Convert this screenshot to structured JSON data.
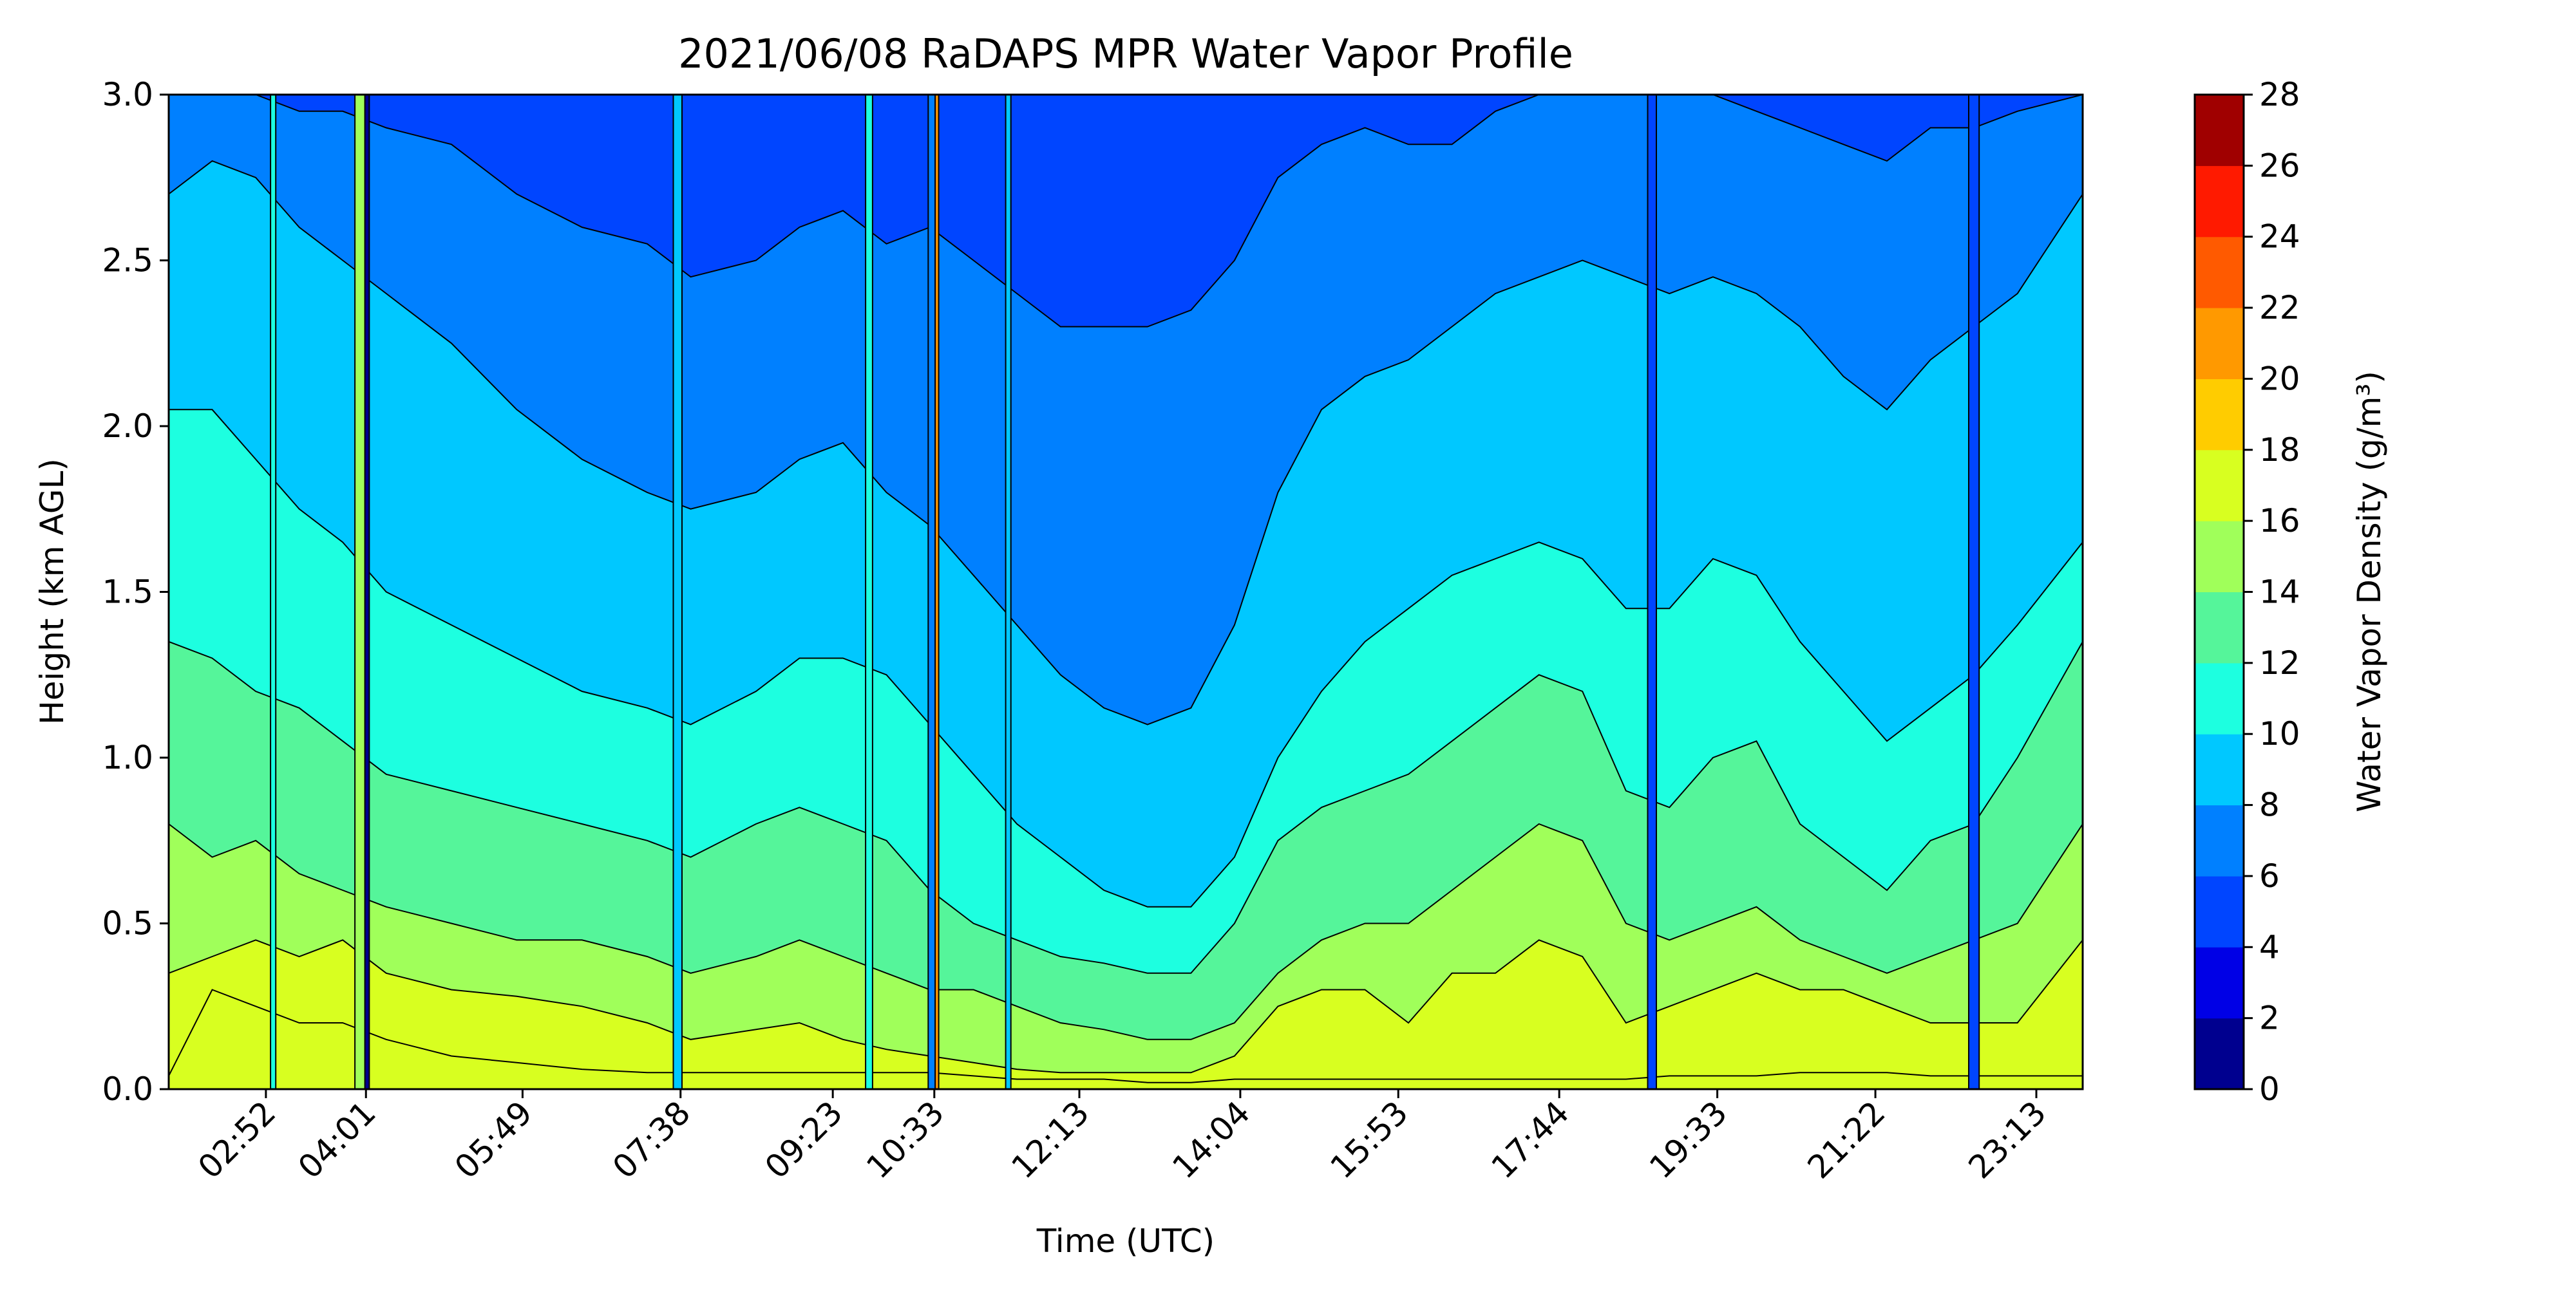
{
  "chart_data": {
    "type": "heatmap",
    "subtype": "filled-contour",
    "title": "2021/06/08 RaDAPS MPR Water Vapor Profile",
    "xlabel": "Time (UTC)",
    "ylabel": "Height (km AGL)",
    "ylim": [
      0.0,
      3.0
    ],
    "xlim_hours": [
      1.75,
      23.75
    ],
    "x_ticks": [
      {
        "label": "02:52",
        "hour": 2.867
      },
      {
        "label": "04:01",
        "hour": 4.017
      },
      {
        "label": "05:49",
        "hour": 5.817
      },
      {
        "label": "07:38",
        "hour": 7.633
      },
      {
        "label": "09:23",
        "hour": 9.383
      },
      {
        "label": "10:33",
        "hour": 10.55
      },
      {
        "label": "12:13",
        "hour": 12.217
      },
      {
        "label": "14:04",
        "hour": 14.067
      },
      {
        "label": "15:53",
        "hour": 15.883
      },
      {
        "label": "17:44",
        "hour": 17.733
      },
      {
        "label": "19:33",
        "hour": 19.55
      },
      {
        "label": "21:22",
        "hour": 21.367
      },
      {
        "label": "23:13",
        "hour": 23.217
      }
    ],
    "y_ticks": [
      "0.0",
      "0.5",
      "1.0",
      "1.5",
      "2.0",
      "2.5",
      "3.0"
    ],
    "y_tick_values": [
      0.0,
      0.5,
      1.0,
      1.5,
      2.0,
      2.5,
      3.0
    ],
    "colorbar": {
      "label": "Water Vapor Density (g/m³)",
      "levels": [
        0,
        2,
        4,
        6,
        8,
        10,
        12,
        14,
        16,
        18,
        20,
        22,
        24,
        26,
        28
      ],
      "tick_labels": [
        "0",
        "2",
        "4",
        "6",
        "8",
        "10",
        "12",
        "14",
        "16",
        "18",
        "20",
        "22",
        "24",
        "26",
        "28"
      ],
      "colors": [
        "#00008f",
        "#0000e6",
        "#0045ff",
        "#0080ff",
        "#00c8ff",
        "#1dffe0",
        "#55f59a",
        "#a0ff5a",
        "#d8ff20",
        "#ffcc00",
        "#ff9900",
        "#ff5a00",
        "#ff1a00",
        "#a00000"
      ]
    },
    "contour_levels_km": {
      "hours": [
        1.75,
        2.25,
        2.75,
        3.25,
        3.75,
        4.25,
        5.0,
        5.75,
        6.5,
        7.25,
        7.75,
        8.5,
        9.0,
        9.5,
        10.0,
        10.5,
        11.0,
        11.5,
        12.0,
        12.5,
        13.0,
        13.5,
        14.0,
        14.5,
        15.0,
        15.5,
        16.0,
        16.5,
        17.0,
        17.5,
        18.0,
        18.5,
        19.0,
        19.5,
        20.0,
        20.5,
        21.0,
        21.5,
        22.0,
        22.5,
        23.0,
        23.75
      ],
      "levels": [
        {
          "value": 18,
          "heights": [
            0.04,
            0.3,
            0.25,
            0.2,
            0.2,
            0.15,
            0.1,
            0.08,
            0.06,
            0.05,
            0.05,
            0.05,
            0.05,
            0.05,
            0.05,
            0.05,
            0.04,
            0.03,
            0.03,
            0.03,
            0.02,
            0.02,
            0.03,
            0.03,
            0.03,
            0.03,
            0.03,
            0.03,
            0.03,
            0.03,
            0.03,
            0.03,
            0.04,
            0.04,
            0.04,
            0.05,
            0.05,
            0.05,
            0.04,
            0.04,
            0.04,
            0.04
          ]
        },
        {
          "value": 16,
          "heights": [
            0.35,
            0.4,
            0.45,
            0.4,
            0.45,
            0.35,
            0.3,
            0.28,
            0.25,
            0.2,
            0.15,
            0.18,
            0.2,
            0.15,
            0.12,
            0.1,
            0.08,
            0.06,
            0.05,
            0.05,
            0.05,
            0.05,
            0.1,
            0.25,
            0.3,
            0.3,
            0.2,
            0.35,
            0.35,
            0.45,
            0.4,
            0.2,
            0.25,
            0.3,
            0.35,
            0.3,
            0.3,
            0.25,
            0.2,
            0.2,
            0.2,
            0.45
          ]
        },
        {
          "value": 14,
          "heights": [
            0.8,
            0.7,
            0.75,
            0.65,
            0.6,
            0.55,
            0.5,
            0.45,
            0.45,
            0.4,
            0.35,
            0.4,
            0.45,
            0.4,
            0.35,
            0.3,
            0.3,
            0.25,
            0.2,
            0.18,
            0.15,
            0.15,
            0.2,
            0.35,
            0.45,
            0.5,
            0.5,
            0.6,
            0.7,
            0.8,
            0.75,
            0.5,
            0.45,
            0.5,
            0.55,
            0.45,
            0.4,
            0.35,
            0.4,
            0.45,
            0.5,
            0.8
          ]
        },
        {
          "value": 12,
          "heights": [
            1.35,
            1.3,
            1.2,
            1.15,
            1.05,
            0.95,
            0.9,
            0.85,
            0.8,
            0.75,
            0.7,
            0.8,
            0.85,
            0.8,
            0.75,
            0.6,
            0.5,
            0.45,
            0.4,
            0.38,
            0.35,
            0.35,
            0.5,
            0.75,
            0.85,
            0.9,
            0.95,
            1.05,
            1.15,
            1.25,
            1.2,
            0.9,
            0.85,
            1.0,
            1.05,
            0.8,
            0.7,
            0.6,
            0.75,
            0.8,
            1.0,
            1.35
          ]
        },
        {
          "value": 10,
          "heights": [
            2.05,
            2.05,
            1.9,
            1.75,
            1.65,
            1.5,
            1.4,
            1.3,
            1.2,
            1.15,
            1.1,
            1.2,
            1.3,
            1.3,
            1.25,
            1.1,
            0.95,
            0.8,
            0.7,
            0.6,
            0.55,
            0.55,
            0.7,
            1.0,
            1.2,
            1.35,
            1.45,
            1.55,
            1.6,
            1.65,
            1.6,
            1.45,
            1.45,
            1.6,
            1.55,
            1.35,
            1.2,
            1.05,
            1.15,
            1.25,
            1.4,
            1.65
          ]
        },
        {
          "value": 8,
          "heights": [
            2.7,
            2.8,
            2.75,
            2.6,
            2.5,
            2.4,
            2.25,
            2.05,
            1.9,
            1.8,
            1.75,
            1.8,
            1.9,
            1.95,
            1.8,
            1.7,
            1.55,
            1.4,
            1.25,
            1.15,
            1.1,
            1.15,
            1.4,
            1.8,
            2.05,
            2.15,
            2.2,
            2.3,
            2.4,
            2.45,
            2.5,
            2.45,
            2.4,
            2.45,
            2.4,
            2.3,
            2.15,
            2.05,
            2.2,
            2.3,
            2.4,
            2.7
          ]
        },
        {
          "value": 6,
          "heights": [
            3.0,
            3.0,
            3.0,
            2.95,
            2.95,
            2.9,
            2.85,
            2.7,
            2.6,
            2.55,
            2.45,
            2.5,
            2.6,
            2.65,
            2.55,
            2.6,
            2.5,
            2.4,
            2.3,
            2.3,
            2.3,
            2.35,
            2.5,
            2.75,
            2.85,
            2.9,
            2.85,
            2.85,
            2.95,
            3.0,
            3.0,
            3.0,
            3.0,
            3.0,
            2.95,
            2.9,
            2.85,
            2.8,
            2.9,
            2.9,
            2.95,
            3.0
          ]
        }
      ]
    },
    "vertical_spikes": [
      {
        "hour": 3.95,
        "width_h": 0.12,
        "value_band": 14
      },
      {
        "hour": 4.03,
        "width_h": 0.05,
        "value_band": 0
      },
      {
        "hour": 7.6,
        "width_h": 0.1,
        "value_band": 8
      },
      {
        "hour": 10.52,
        "width_h": 0.08,
        "value_band": 6
      },
      {
        "hour": 10.58,
        "width_h": 0.04,
        "value_band": 20
      },
      {
        "hour": 18.8,
        "width_h": 0.1,
        "value_band": 4
      },
      {
        "hour": 22.5,
        "width_h": 0.12,
        "value_band": 4
      },
      {
        "hour": 2.95,
        "width_h": 0.06,
        "value_band": 10
      },
      {
        "hour": 9.8,
        "width_h": 0.08,
        "value_band": 10
      },
      {
        "hour": 11.4,
        "width_h": 0.06,
        "value_band": 8
      }
    ],
    "grid": false,
    "legend": "colorbar-right"
  }
}
